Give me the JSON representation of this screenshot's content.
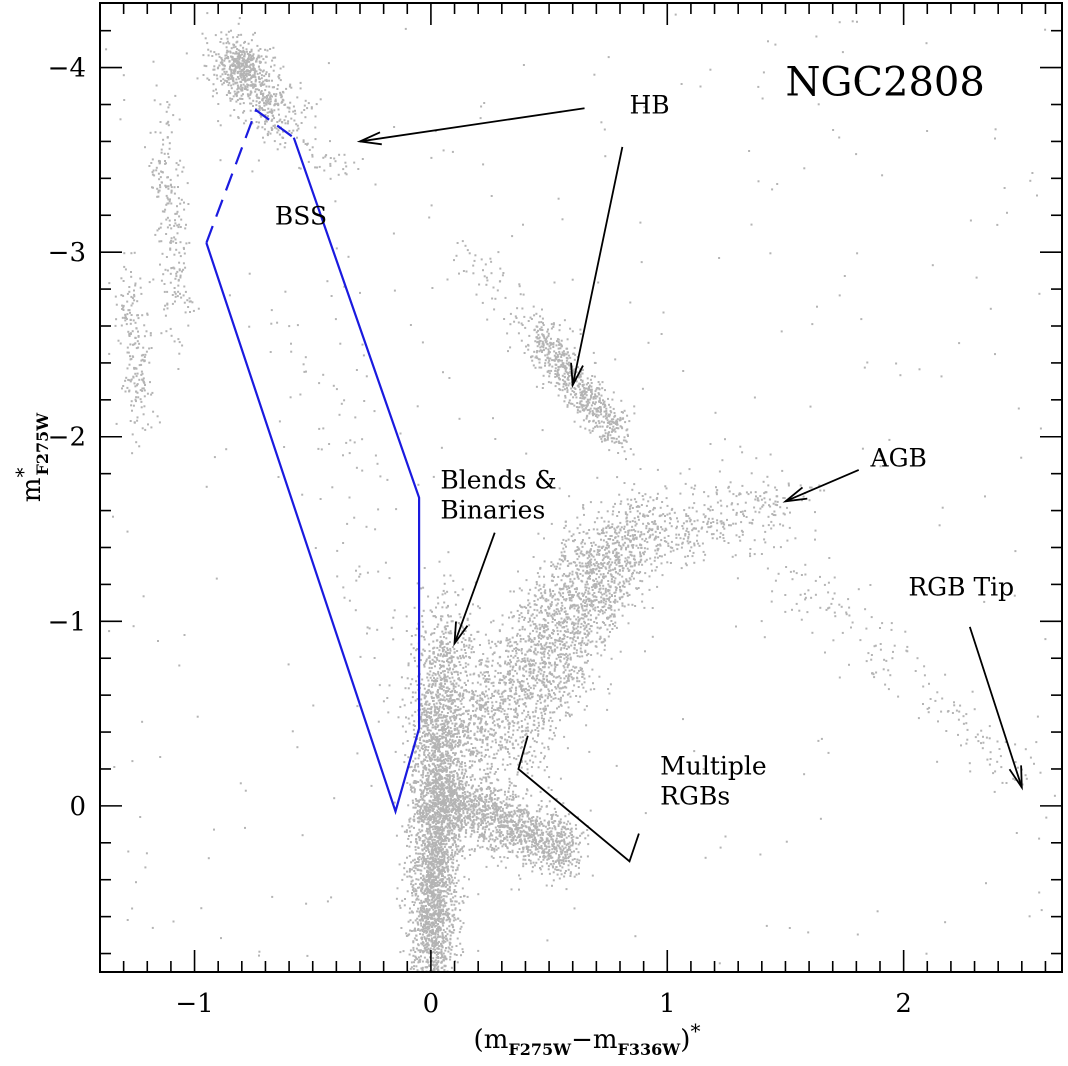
{
  "chart_data": {
    "type": "scatter",
    "title": "NGC2808",
    "xlabel": {
      "main": "(m",
      "sub1": "F275W",
      "mid": "−m",
      "sub2": "F336W",
      "end": ")",
      "sup": "*"
    },
    "ylabel": {
      "main": "m",
      "sup": "*",
      "sub": "F275W"
    },
    "xlim": [
      -1.4,
      2.67
    ],
    "ylim": [
      0.9,
      -4.35
    ],
    "x_ticks": [
      -1,
      0,
      1,
      2
    ],
    "x_tick_labels": [
      "−1",
      "0",
      "1",
      "2"
    ],
    "y_ticks": [
      -4,
      -3,
      -2,
      -1,
      0
    ],
    "y_tick_labels": [
      "−4",
      "−3",
      "−2",
      "−1",
      "0"
    ],
    "grid": false,
    "colors": {
      "points": "#b4b4b4",
      "bss_box": "#1a1adf",
      "annotation": "#000000"
    },
    "bss_region": {
      "label": "BSS",
      "solid_vertices": [
        [
          -0.58,
          -3.62
        ],
        [
          -0.05,
          -1.67
        ],
        [
          -0.05,
          -0.42
        ],
        [
          -0.15,
          0.03
        ],
        [
          -0.95,
          -3.05
        ]
      ],
      "dashed_vertices": [
        [
          -0.95,
          -3.05
        ],
        [
          -0.74,
          -3.77
        ],
        [
          -0.58,
          -3.62
        ]
      ],
      "label_position": [
        -0.66,
        -3.15
      ]
    },
    "annotations": [
      {
        "lines": [
          "NGC2808"
        ],
        "role": "title",
        "at": [
          1.5,
          -3.85
        ]
      },
      {
        "lines": [
          "HB"
        ],
        "at": [
          0.84,
          -3.75
        ],
        "arrows": [
          [
            [
              0.65,
              -3.78
            ],
            [
              -0.3,
              -3.6
            ]
          ],
          [
            [
              0.81,
              -3.57
            ],
            [
              0.6,
              -2.28
            ]
          ]
        ]
      },
      {
        "lines": [
          "AGB"
        ],
        "at": [
          1.86,
          -1.84
        ],
        "arrows": [
          [
            [
              1.81,
              -1.82
            ],
            [
              1.5,
              -1.65
            ]
          ]
        ]
      },
      {
        "lines": [
          "RGB Tip"
        ],
        "at": [
          2.02,
          -1.14
        ],
        "arrows": [
          [
            [
              2.28,
              -0.97
            ],
            [
              2.5,
              -0.1
            ]
          ]
        ]
      },
      {
        "lines": [
          "Blends &",
          "Binaries"
        ],
        "at": [
          0.04,
          -1.72
        ],
        "arrows": [
          [
            [
              0.27,
              -1.48
            ],
            [
              0.1,
              -0.88
            ]
          ]
        ]
      },
      {
        "lines": [
          "Multiple",
          "RGBs"
        ],
        "at": [
          0.97,
          -0.17
        ],
        "bracket": [
          [
            0.41,
            -0.38
          ],
          [
            0.37,
            -0.2
          ],
          [
            0.84,
            0.3
          ],
          [
            0.88,
            0.15
          ]
        ]
      }
    ],
    "series": [
      {
        "populations": [
          {
            "shape": "segment",
            "from": [
              0.0,
              0.92
            ],
            "to": [
              0.03,
              -0.25
            ],
            "n": 2600,
            "sx": 0.05,
            "sy": 0.28
          },
          {
            "shape": "segment",
            "from": [
              0.05,
              -0.05
            ],
            "to": [
              0.6,
              0.25
            ],
            "n": 1400,
            "sx": 0.045,
            "sy": 0.09
          },
          {
            "shape": "segment",
            "from": [
              0.08,
              -0.2
            ],
            "to": [
              0.75,
              -1.45
            ],
            "n": 1500,
            "sx": 0.09,
            "sy": 0.13
          },
          {
            "shape": "segment",
            "from": [
              0.35,
              -0.25
            ],
            "to": [
              0.92,
              -1.6
            ],
            "n": 1000,
            "sx": 0.07,
            "sy": 0.12
          },
          {
            "shape": "segment",
            "from": [
              0.0,
              -0.3
            ],
            "to": [
              0.08,
              -1.0
            ],
            "n": 650,
            "sx": 0.06,
            "sy": 0.15
          },
          {
            "shape": "segment",
            "from": [
              0.8,
              -1.4
            ],
            "to": [
              1.5,
              -1.65
            ],
            "n": 300,
            "sx": 0.12,
            "sy": 0.12
          },
          {
            "shape": "segment",
            "from": [
              1.5,
              -1.3
            ],
            "to": [
              2.5,
              -0.15
            ],
            "n": 170,
            "sx": 0.08,
            "sy": 0.08
          },
          {
            "shape": "segment",
            "from": [
              0.78,
              -1.35
            ],
            "to": [
              1.48,
              -1.67
            ],
            "n": 90,
            "sx": 0.03,
            "sy": 0.05
          },
          {
            "shape": "segment",
            "from": [
              0.45,
              -2.55
            ],
            "to": [
              0.8,
              -2.0
            ],
            "n": 650,
            "sx": 0.04,
            "sy": 0.06
          },
          {
            "shape": "segment",
            "from": [
              0.15,
              -3.0
            ],
            "to": [
              0.45,
              -2.55
            ],
            "n": 70,
            "sx": 0.05,
            "sy": 0.08
          },
          {
            "shape": "segment",
            "from": [
              -0.9,
              -4.1
            ],
            "to": [
              -0.6,
              -3.7
            ],
            "n": 420,
            "sx": 0.06,
            "sy": 0.08
          },
          {
            "shape": "blob",
            "center": [
              -0.8,
              -4.0
            ],
            "n": 300,
            "sx": 0.05,
            "sy": 0.07
          },
          {
            "shape": "segment",
            "from": [
              -1.15,
              -3.7
            ],
            "to": [
              -1.05,
              -2.6
            ],
            "n": 230,
            "sx": 0.035,
            "sy": 0.12
          },
          {
            "shape": "segment",
            "from": [
              -1.28,
              -2.8
            ],
            "to": [
              -1.22,
              -2.1
            ],
            "n": 200,
            "sx": 0.035,
            "sy": 0.12
          },
          {
            "shape": "segment",
            "from": [
              -0.6,
              -3.6
            ],
            "to": [
              -0.3,
              -3.45
            ],
            "n": 40,
            "sx": 0.05,
            "sy": 0.05
          },
          {
            "shape": "segment",
            "from": [
              -0.55,
              -2.7
            ],
            "to": [
              -0.05,
              -0.45
            ],
            "n": 110,
            "sx": 0.12,
            "sy": 0.15
          },
          {
            "shape": "uniform",
            "x": [
              -1.4,
              2.6
            ],
            "y": [
              -4.3,
              0.88
            ],
            "n": 320
          }
        ]
      }
    ]
  }
}
